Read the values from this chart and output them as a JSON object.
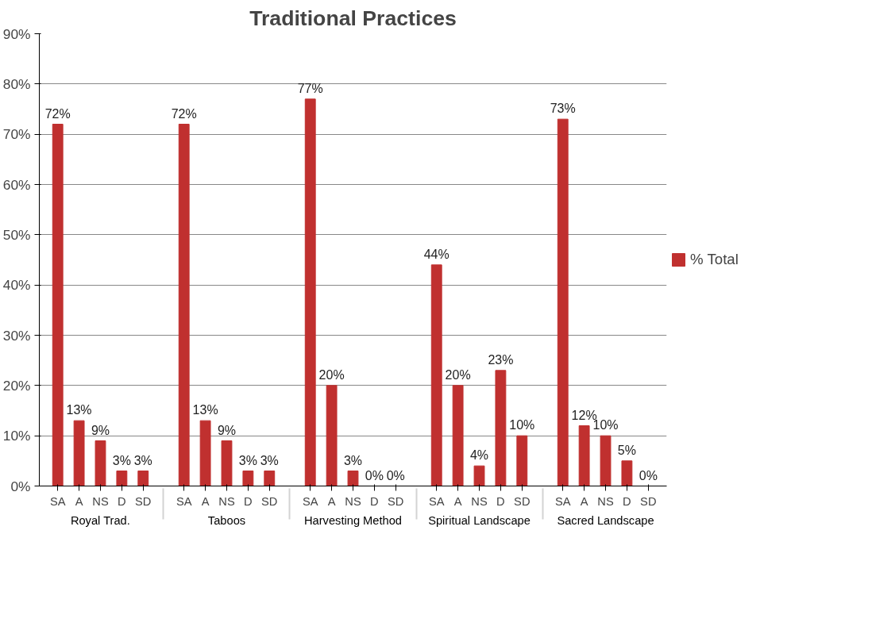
{
  "chart_data": {
    "type": "bar",
    "title": "Traditional Practices",
    "categories": [
      "SA",
      "A",
      "NS",
      "D",
      "SD",
      "SA",
      "A",
      "NS",
      "D",
      "SD",
      "SA",
      "A",
      "NS",
      "D",
      "SD",
      "SA",
      "A",
      "NS",
      "D",
      "SD",
      "SA",
      "A",
      "NS",
      "D",
      "SD"
    ],
    "annotations": [
      "Royal Trad.",
      "Taboos",
      "Harvesting Method",
      "Spiritual Landscape",
      "Sacred Landscape"
    ],
    "series": [
      {
        "name": "% Total",
        "color": "#c0302f",
        "values": [
          72,
          13,
          9,
          3,
          3,
          72,
          13,
          9,
          3,
          3,
          77,
          20,
          3,
          0,
          0,
          44,
          20,
          4,
          23,
          10,
          73,
          12,
          10,
          5,
          0
        ],
        "value_labels": [
          "72%",
          "13%",
          "9%",
          "3%",
          "3%",
          "72%",
          "13%",
          "9%",
          "3%",
          "3%",
          "77%",
          "20%",
          "3%",
          "0%",
          "0%",
          "44%",
          "20%",
          "4%",
          "23%",
          "10%",
          "73%",
          "12%",
          "10%",
          "5%",
          "0%"
        ]
      }
    ],
    "ylim": [
      0,
      90
    ],
    "yticks": [
      {
        "value": 0,
        "label": "0%"
      },
      {
        "value": 10,
        "label": "10%"
      },
      {
        "value": 20,
        "label": "20%"
      },
      {
        "value": 30,
        "label": "30%"
      },
      {
        "value": 40,
        "label": "40%"
      },
      {
        "value": 50,
        "label": "50%"
      },
      {
        "value": 60,
        "label": "60%"
      },
      {
        "value": 70,
        "label": "70%"
      },
      {
        "value": 80,
        "label": "80%"
      },
      {
        "value": 90,
        "label": "90%"
      }
    ],
    "grid": "y",
    "legend": "right"
  }
}
